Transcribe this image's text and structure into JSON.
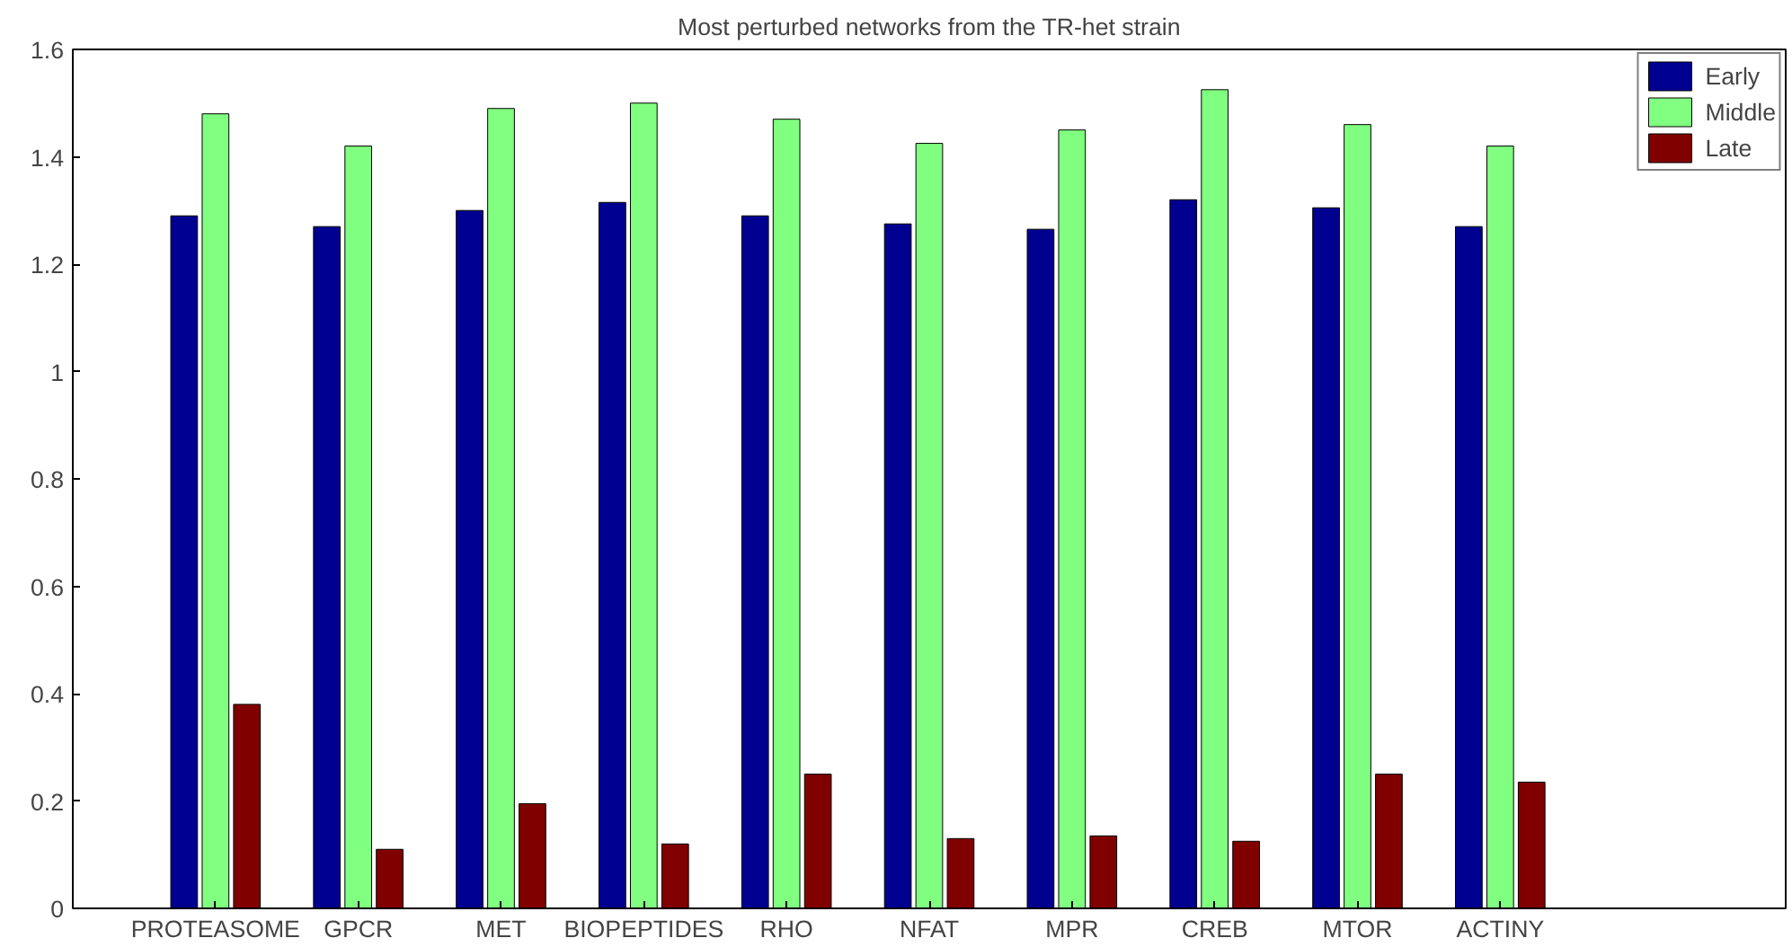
{
  "chart_data": {
    "type": "bar",
    "title": "Most perturbed networks from the TR-het strain",
    "categories": [
      "PROTEASOME",
      "GPCR",
      "MET",
      "BIOPEPTIDES",
      "RHO",
      "NFAT",
      "MPR",
      "CREB",
      "MTOR",
      "ACTINY"
    ],
    "series": [
      {
        "name": "Early",
        "color": "#000090",
        "values": [
          1.29,
          1.27,
          1.3,
          1.315,
          1.29,
          1.275,
          1.265,
          1.32,
          1.305,
          1.27
        ]
      },
      {
        "name": "Middle",
        "color": "#80ff80",
        "values": [
          1.48,
          1.42,
          1.49,
          1.5,
          1.47,
          1.425,
          1.45,
          1.525,
          1.46,
          1.42
        ]
      },
      {
        "name": "Late",
        "color": "#800000",
        "values": [
          0.38,
          0.11,
          0.195,
          0.12,
          0.25,
          0.13,
          0.135,
          0.125,
          0.25,
          0.235
        ]
      }
    ],
    "ylim": [
      0,
      1.6
    ],
    "yticks": [
      0,
      0.2,
      0.4,
      0.6,
      0.8,
      1,
      1.2,
      1.4,
      1.6
    ],
    "grid": false,
    "legend": "top right"
  }
}
